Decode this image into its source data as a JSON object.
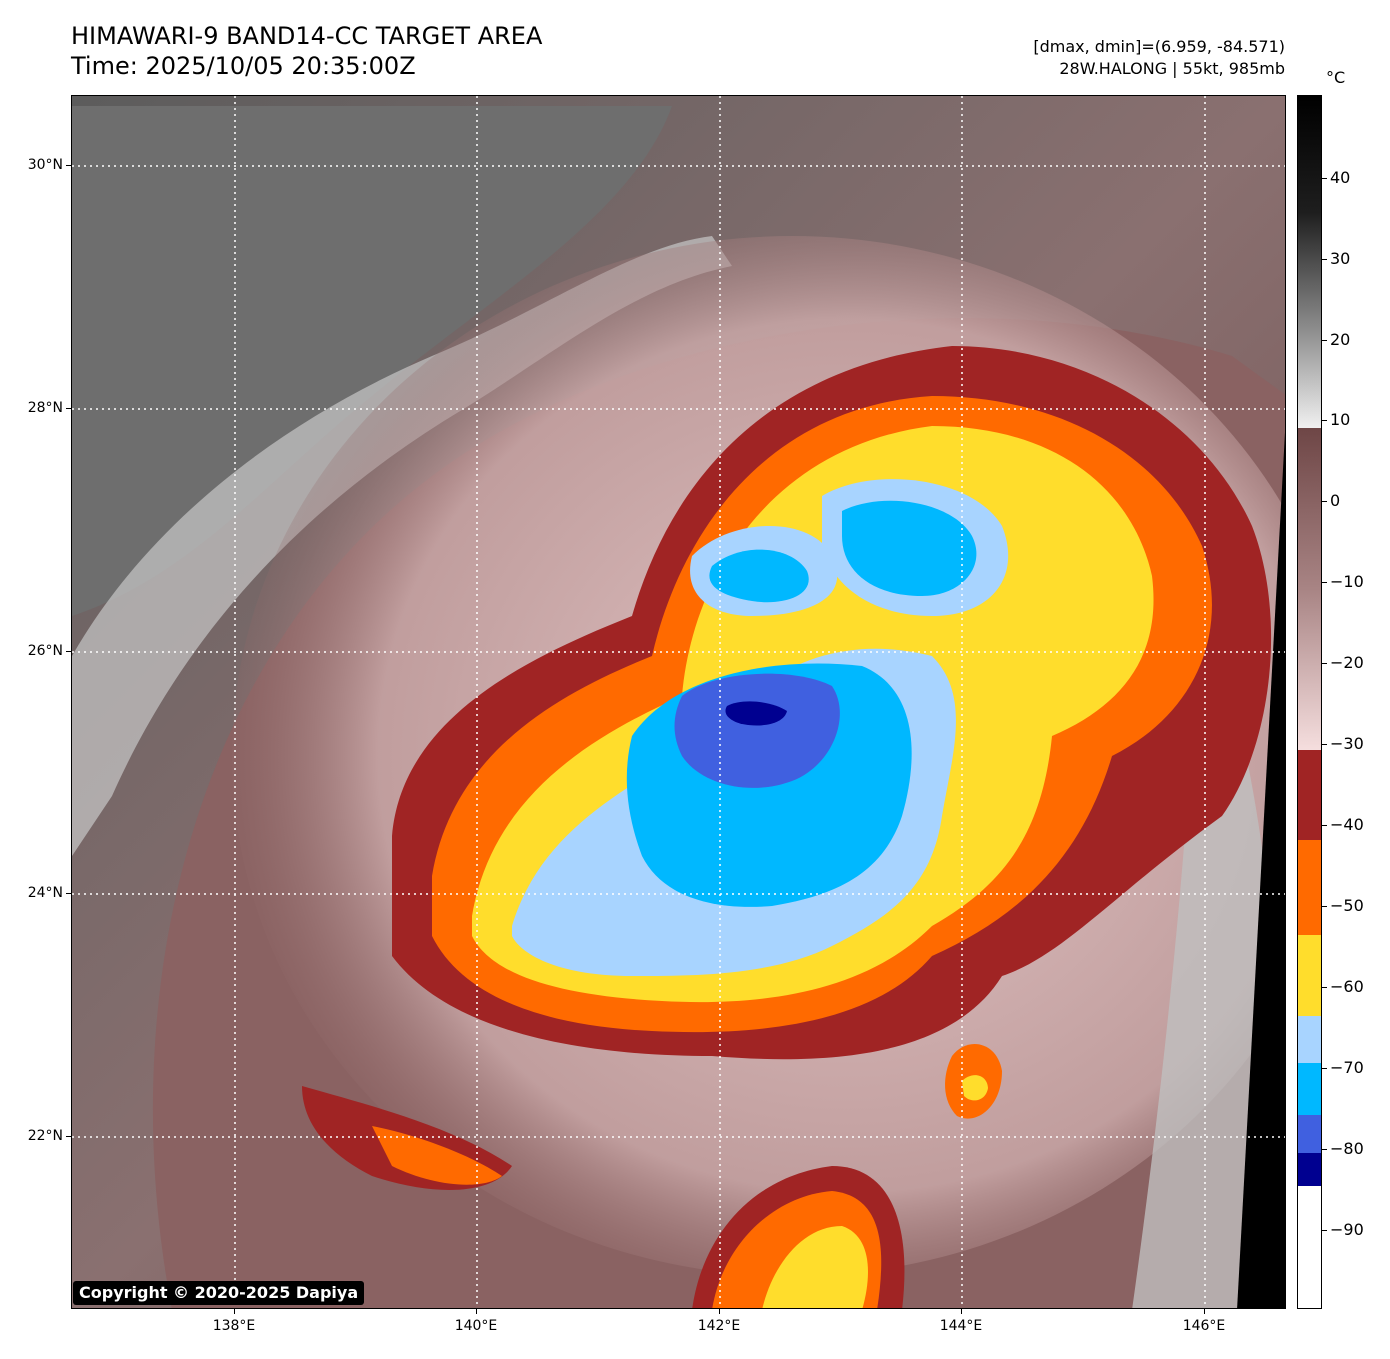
{
  "header": {
    "title_line1": "HIMAWARI-9 BAND14-CC TARGET AREA",
    "title_line2": "Time: 2025/10/05 20:35:00Z",
    "meta_line1": "[dmax, dmin]=(6.959, -84.571)",
    "meta_line2": "28W.HALONG | 55kt, 985mb"
  },
  "map": {
    "lat_labels": [
      "30°N",
      "28°N",
      "26°N",
      "24°N",
      "22°N"
    ],
    "lon_labels": [
      "138°E",
      "140°E",
      "142°E",
      "144°E",
      "146°E"
    ],
    "copyright": "Copyright © 2020-2025 Dapiya"
  },
  "colorbar": {
    "unit": "°C",
    "ticks": [
      "40",
      "30",
      "20",
      "10",
      "0",
      "−10",
      "−20",
      "−30",
      "−40",
      "−50",
      "−60",
      "−70",
      "−80",
      "−90"
    ],
    "colors": {
      "warm_black": "#000000",
      "gray": "#808080",
      "brown": "#7a5050",
      "pink": "#f0d4d4",
      "dark_red": "#a02424",
      "orange": "#ff6a00",
      "yellow": "#ffdd2c",
      "light_blue": "#a8d4ff",
      "cyan_blue": "#00b8ff",
      "royal_blue": "#4060e0",
      "navy": "#000090",
      "white": "#ffffff"
    }
  }
}
